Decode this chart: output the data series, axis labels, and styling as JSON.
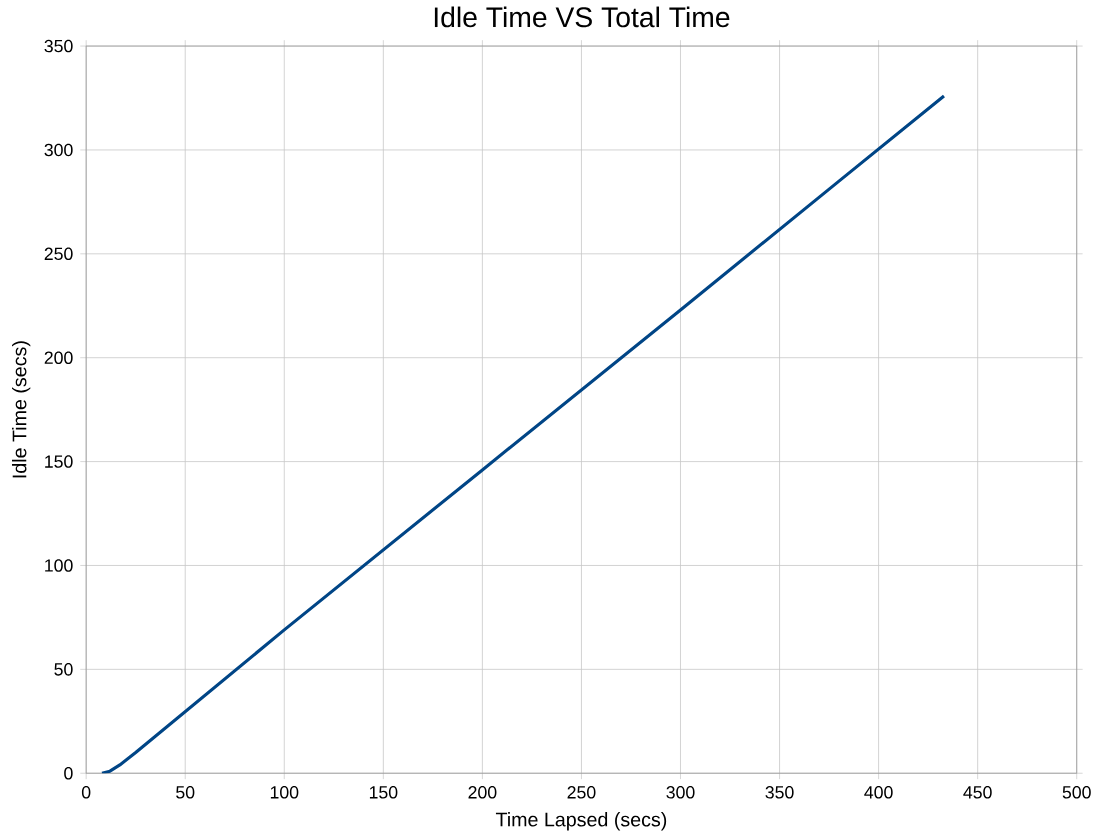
{
  "chart_data": {
    "type": "line",
    "title": "Idle Time VS Total Time",
    "xlabel": "Time Lapsed (secs)",
    "ylabel": "Idle Time (secs)",
    "x": [
      8,
      12,
      17,
      25,
      100,
      200,
      300,
      380,
      433
    ],
    "series": [
      {
        "color": "#004586",
        "values": [
          0,
          1,
          4,
          10,
          69,
          146,
          223,
          285,
          326
        ]
      }
    ],
    "xlim": [
      0,
      500
    ],
    "xticks": [
      0,
      50,
      100,
      150,
      200,
      250,
      300,
      350,
      400,
      450,
      500
    ],
    "ylim": [
      0,
      350
    ],
    "yticks": [
      0,
      50,
      100,
      150,
      200,
      250,
      300,
      350
    ],
    "grid": true,
    "marker": "none",
    "line_style": "solid"
  }
}
